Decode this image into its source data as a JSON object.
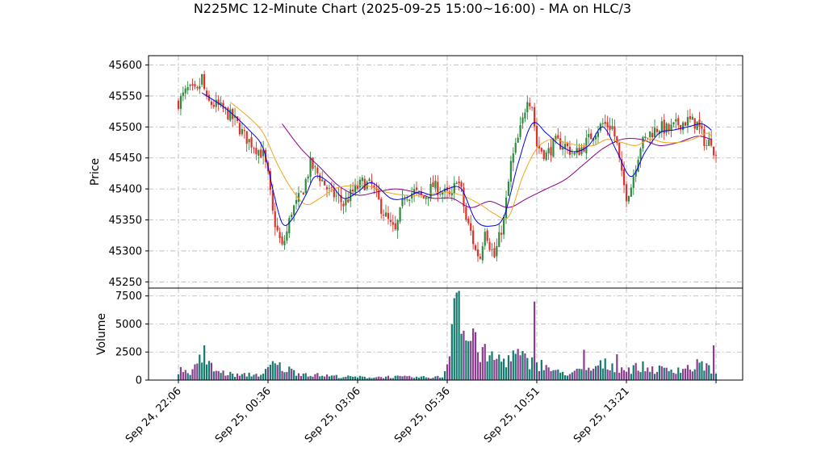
{
  "chart_data": {
    "type": "candlestick",
    "title": "N225MC 12-Minute Chart (2025-09-25 15:00~16:00) - MA on HLC/3",
    "price_panel": {
      "ylabel": "Price",
      "ylim": [
        45240,
        45615
      ],
      "yticks": [
        45250,
        45300,
        45350,
        45400,
        45450,
        45500,
        45550,
        45600
      ],
      "grid": true
    },
    "volume_panel": {
      "ylabel": "Volume",
      "ylim": [
        0,
        8200
      ],
      "yticks": [
        0,
        2500,
        5000,
        7500
      ],
      "grid": true
    },
    "x_ticks": [
      {
        "index": 0,
        "label": "Sep 24, 22:06"
      },
      {
        "index": 38,
        "label": "Sep 25, 00:36"
      },
      {
        "index": 76,
        "label": "Sep 25, 03:06"
      },
      {
        "index": 114,
        "label": "Sep 25, 05:36"
      },
      {
        "index": 152,
        "label": "Sep 25, 10:51"
      },
      {
        "index": 190,
        "label": "Sep 25, 13:21"
      },
      {
        "index": 228,
        "label": ""
      }
    ],
    "n_bars": 229,
    "colors": {
      "up": "#2e8b3e",
      "down": "#e0302a",
      "vol_up": "#137a6e",
      "vol_down": "#8a3e8e",
      "ma_fast": "#0000ee",
      "ma_mid": "#f2a418",
      "ma_slow": "#8b008b"
    },
    "close_anchors": [
      [
        0,
        45540
      ],
      [
        4,
        45560
      ],
      [
        8,
        45555
      ],
      [
        10,
        45580
      ],
      [
        12,
        45540
      ],
      [
        16,
        45535
      ],
      [
        20,
        45525
      ],
      [
        24,
        45510
      ],
      [
        28,
        45485
      ],
      [
        32,
        45470
      ],
      [
        36,
        45455
      ],
      [
        38,
        45420
      ],
      [
        40,
        45360
      ],
      [
        42,
        45330
      ],
      [
        44,
        45305
      ],
      [
        46,
        45330
      ],
      [
        48,
        45365
      ],
      [
        50,
        45375
      ],
      [
        53,
        45400
      ],
      [
        56,
        45440
      ],
      [
        60,
        45420
      ],
      [
        64,
        45395
      ],
      [
        68,
        45385
      ],
      [
        70,
        45375
      ],
      [
        74,
        45395
      ],
      [
        78,
        45410
      ],
      [
        82,
        45405
      ],
      [
        86,
        45370
      ],
      [
        90,
        45340
      ],
      [
        92,
        45330
      ],
      [
        96,
        45390
      ],
      [
        100,
        45395
      ],
      [
        104,
        45385
      ],
      [
        108,
        45405
      ],
      [
        112,
        45395
      ],
      [
        116,
        45385
      ],
      [
        118,
        45420
      ],
      [
        120,
        45395
      ],
      [
        122,
        45350
      ],
      [
        124,
        45330
      ],
      [
        126,
        45300
      ],
      [
        128,
        45290
      ],
      [
        130,
        45340
      ],
      [
        132,
        45310
      ],
      [
        134,
        45290
      ],
      [
        136,
        45320
      ],
      [
        138,
        45350
      ],
      [
        141,
        45440
      ],
      [
        144,
        45480
      ],
      [
        146,
        45510
      ],
      [
        148,
        45550
      ],
      [
        150,
        45535
      ],
      [
        152,
        45470
      ],
      [
        156,
        45455
      ],
      [
        160,
        45475
      ],
      [
        164,
        45470
      ],
      [
        168,
        45455
      ],
      [
        172,
        45470
      ],
      [
        176,
        45490
      ],
      [
        180,
        45505
      ],
      [
        184,
        45500
      ],
      [
        186,
        45470
      ],
      [
        188,
        45420
      ],
      [
        190,
        45390
      ],
      [
        192,
        45405
      ],
      [
        194,
        45440
      ],
      [
        196,
        45470
      ],
      [
        200,
        45490
      ],
      [
        204,
        45500
      ],
      [
        208,
        45495
      ],
      [
        212,
        45505
      ],
      [
        216,
        45510
      ],
      [
        220,
        45505
      ],
      [
        224,
        45470
      ],
      [
        226,
        45480
      ],
      [
        228,
        45450
      ]
    ],
    "ma_fast_pts": [
      [
        10,
        45555
      ],
      [
        20,
        45530
      ],
      [
        30,
        45495
      ],
      [
        36,
        45465
      ],
      [
        40,
        45400
      ],
      [
        44,
        45345
      ],
      [
        48,
        45350
      ],
      [
        54,
        45390
      ],
      [
        58,
        45420
      ],
      [
        64,
        45410
      ],
      [
        70,
        45385
      ],
      [
        76,
        45395
      ],
      [
        82,
        45410
      ],
      [
        90,
        45385
      ],
      [
        96,
        45385
      ],
      [
        102,
        45395
      ],
      [
        108,
        45390
      ],
      [
        114,
        45400
      ],
      [
        120,
        45400
      ],
      [
        126,
        45350
      ],
      [
        132,
        45340
      ],
      [
        138,
        45355
      ],
      [
        144,
        45440
      ],
      [
        150,
        45505
      ],
      [
        156,
        45490
      ],
      [
        162,
        45470
      ],
      [
        168,
        45460
      ],
      [
        174,
        45470
      ],
      [
        180,
        45500
      ],
      [
        186,
        45460
      ],
      [
        192,
        45420
      ],
      [
        198,
        45460
      ],
      [
        204,
        45490
      ],
      [
        210,
        45495
      ],
      [
        216,
        45500
      ],
      [
        222,
        45505
      ],
      [
        226,
        45495
      ]
    ],
    "ma_mid_pts": [
      [
        22,
        45540
      ],
      [
        30,
        45515
      ],
      [
        36,
        45490
      ],
      [
        42,
        45440
      ],
      [
        48,
        45400
      ],
      [
        54,
        45375
      ],
      [
        60,
        45385
      ],
      [
        66,
        45400
      ],
      [
        72,
        45405
      ],
      [
        80,
        45405
      ],
      [
        88,
        45395
      ],
      [
        96,
        45390
      ],
      [
        104,
        45390
      ],
      [
        112,
        45395
      ],
      [
        120,
        45390
      ],
      [
        128,
        45375
      ],
      [
        134,
        45360
      ],
      [
        140,
        45355
      ],
      [
        146,
        45420
      ],
      [
        152,
        45465
      ],
      [
        158,
        45480
      ],
      [
        164,
        45475
      ],
      [
        170,
        45470
      ],
      [
        176,
        45470
      ],
      [
        182,
        45480
      ],
      [
        188,
        45475
      ],
      [
        194,
        45470
      ],
      [
        200,
        45480
      ],
      [
        206,
        45475
      ],
      [
        212,
        45475
      ],
      [
        218,
        45480
      ],
      [
        224,
        45490
      ],
      [
        226,
        45485
      ]
    ],
    "ma_slow_pts": [
      [
        44,
        45505
      ],
      [
        52,
        45465
      ],
      [
        60,
        45435
      ],
      [
        68,
        45405
      ],
      [
        76,
        45390
      ],
      [
        84,
        45395
      ],
      [
        92,
        45400
      ],
      [
        100,
        45395
      ],
      [
        108,
        45385
      ],
      [
        116,
        45385
      ],
      [
        124,
        45370
      ],
      [
        132,
        45380
      ],
      [
        140,
        45370
      ],
      [
        148,
        45385
      ],
      [
        156,
        45400
      ],
      [
        164,
        45415
      ],
      [
        172,
        45440
      ],
      [
        180,
        45465
      ],
      [
        188,
        45480
      ],
      [
        196,
        45480
      ],
      [
        204,
        45470
      ],
      [
        212,
        45475
      ],
      [
        220,
        45485
      ],
      [
        226,
        45480
      ]
    ],
    "volume_anchors": [
      [
        0,
        900
      ],
      [
        6,
        700
      ],
      [
        10,
        2000
      ],
      [
        12,
        1500
      ],
      [
        16,
        800
      ],
      [
        20,
        600
      ],
      [
        26,
        400
      ],
      [
        30,
        500
      ],
      [
        36,
        500
      ],
      [
        40,
        1400
      ],
      [
        44,
        1100
      ],
      [
        50,
        700
      ],
      [
        56,
        500
      ],
      [
        62,
        400
      ],
      [
        70,
        300
      ],
      [
        80,
        250
      ],
      [
        90,
        300
      ],
      [
        100,
        250
      ],
      [
        108,
        250
      ],
      [
        112,
        300
      ],
      [
        114,
        1400
      ],
      [
        116,
        5000
      ],
      [
        118,
        7200
      ],
      [
        120,
        4000
      ],
      [
        124,
        3500
      ],
      [
        128,
        2500
      ],
      [
        132,
        2000
      ],
      [
        138,
        1800
      ],
      [
        144,
        2200
      ],
      [
        148,
        1600
      ],
      [
        152,
        1500
      ],
      [
        156,
        1200
      ],
      [
        160,
        700
      ],
      [
        166,
        600
      ],
      [
        170,
        800
      ],
      [
        176,
        1000
      ],
      [
        180,
        1400
      ],
      [
        186,
        1200
      ],
      [
        190,
        900
      ],
      [
        196,
        1200
      ],
      [
        200,
        1000
      ],
      [
        206,
        900
      ],
      [
        212,
        1000
      ],
      [
        218,
        1100
      ],
      [
        222,
        1500
      ],
      [
        226,
        900
      ],
      [
        228,
        700
      ]
    ],
    "volume_spikes": [
      [
        11,
        3100
      ],
      [
        117,
        7300
      ],
      [
        118,
        7800
      ],
      [
        119,
        7950
      ],
      [
        121,
        4400
      ],
      [
        125,
        4600
      ],
      [
        151,
        7000
      ],
      [
        172,
        2700
      ],
      [
        186,
        2300
      ],
      [
        227,
        3100
      ]
    ]
  }
}
